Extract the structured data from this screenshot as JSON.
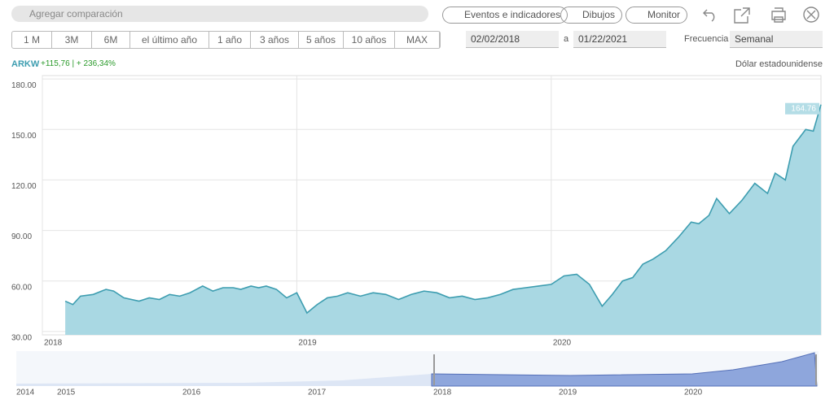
{
  "toolbar": {
    "search": "Agregar comparación",
    "buttons": [
      "Eventos e indicadores",
      "Dibujos",
      "Monitor"
    ],
    "ranges": [
      "1 M",
      "3M",
      "6M",
      "el último año",
      "1 año",
      "3 años",
      "5 años",
      "10 años",
      "MAX"
    ],
    "date_from": "02/02/2018",
    "date_sep": "a",
    "date_to": "01/22/2021",
    "frequency_label": "Frecuencia",
    "frequency": "Semanal"
  },
  "header": {
    "change": "+115,76 | + 236,34%",
    "currency": "Dólar estadounidense"
  },
  "chart_data": {
    "type": "area",
    "series": [
      {
        "name": "ARKW",
        "color": "#3d9db0",
        "x": [
          2018.09,
          2018.12,
          2018.15,
          2018.2,
          2018.25,
          2018.28,
          2018.32,
          2018.38,
          2018.42,
          2018.46,
          2018.5,
          2018.54,
          2018.58,
          2018.63,
          2018.67,
          2018.71,
          2018.75,
          2018.78,
          2018.82,
          2018.85,
          2018.88,
          2018.92,
          2018.96,
          2019.0,
          2019.04,
          2019.08,
          2019.12,
          2019.16,
          2019.2,
          2019.25,
          2019.3,
          2019.35,
          2019.4,
          2019.45,
          2019.5,
          2019.55,
          2019.6,
          2019.65,
          2019.7,
          2019.75,
          2019.8,
          2019.85,
          2019.9,
          2019.95,
          2020.0,
          2020.05,
          2020.1,
          2020.15,
          2020.2,
          2020.24,
          2020.28,
          2020.32,
          2020.36,
          2020.4,
          2020.45,
          2020.5,
          2020.55,
          2020.58,
          2020.62,
          2020.65,
          2020.7,
          2020.75,
          2020.8,
          2020.85,
          2020.88,
          2020.92,
          2020.95,
          2021.0,
          2021.03,
          2021.06
        ],
        "values": [
          48,
          46,
          51,
          52,
          55,
          54,
          50,
          48,
          50,
          49,
          52,
          51,
          53,
          57,
          54,
          56,
          56,
          55,
          57,
          56,
          57,
          55,
          50,
          53,
          41,
          46,
          50,
          51,
          53,
          51,
          53,
          52,
          49,
          52,
          54,
          53,
          50,
          51,
          49,
          50,
          52,
          55,
          56,
          57,
          58,
          63,
          64,
          58,
          45,
          52,
          60,
          62,
          70,
          73,
          78,
          86,
          95,
          94,
          99,
          109,
          100,
          108,
          118,
          112,
          124,
          120,
          140,
          150,
          149,
          164.76
        ]
      }
    ],
    "xlim": [
      2018.0,
      2021.06
    ],
    "xticks": [
      2018,
      2019,
      2020
    ],
    "ylim": [
      28,
      182
    ],
    "yticks": [
      {
        "value": 30,
        "label": "30.00"
      },
      {
        "value": 60,
        "label": "60.00"
      },
      {
        "value": 90,
        "label": "90.00"
      },
      {
        "value": 120,
        "label": "120.00"
      },
      {
        "value": 150,
        "label": "150.00"
      },
      {
        "value": 180,
        "label": "180.00"
      }
    ],
    "grid": true
  },
  "navigator": {
    "years": [
      "2014",
      "2015",
      "2016",
      "2017",
      "2018",
      "2019",
      "2020"
    ]
  }
}
